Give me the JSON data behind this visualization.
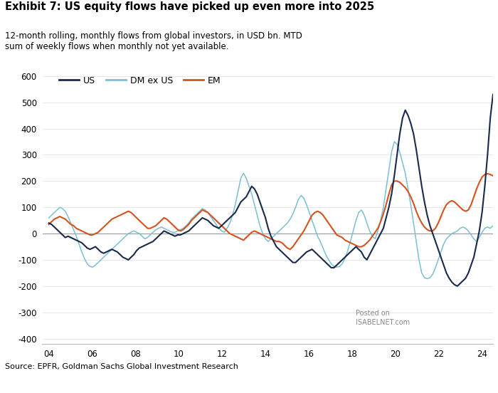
{
  "title": "Exhibit 7: US equity flows have picked up even more into 2025",
  "subtitle": "12-month rolling, monthly flows from global investors, in USD bn. MTD\nsum of weekly flows when monthly not yet available.",
  "source": "Source: EPFR, Goldman Sachs Global Investment Research",
  "xlim": [
    3.7,
    24.5
  ],
  "ylim": [
    -420,
    620
  ],
  "yticks": [
    -400,
    -300,
    -200,
    -100,
    0,
    100,
    200,
    300,
    400,
    500,
    600
  ],
  "xticks": [
    4,
    6,
    8,
    10,
    12,
    14,
    16,
    18,
    20,
    22,
    24
  ],
  "colors": {
    "US": "#1a2a4a",
    "DM_ex_US": "#7bbfd4",
    "EM": "#d4531e"
  },
  "US": [
    40,
    35,
    25,
    15,
    5,
    -5,
    -15,
    -10,
    -15,
    -20,
    -25,
    -30,
    -35,
    -45,
    -55,
    -60,
    -55,
    -50,
    -60,
    -70,
    -75,
    -70,
    -65,
    -60,
    -65,
    -70,
    -80,
    -90,
    -95,
    -100,
    -90,
    -80,
    -65,
    -55,
    -50,
    -45,
    -40,
    -35,
    -30,
    -20,
    -10,
    0,
    10,
    5,
    0,
    -5,
    -10,
    -5,
    -5,
    0,
    5,
    10,
    20,
    30,
    40,
    50,
    60,
    55,
    50,
    40,
    30,
    25,
    20,
    30,
    40,
    50,
    60,
    70,
    80,
    100,
    120,
    130,
    140,
    160,
    180,
    170,
    150,
    120,
    90,
    60,
    20,
    -10,
    -30,
    -50,
    -60,
    -70,
    -80,
    -90,
    -100,
    -110,
    -110,
    -100,
    -90,
    -80,
    -70,
    -65,
    -60,
    -70,
    -80,
    -90,
    -100,
    -110,
    -120,
    -130,
    -130,
    -120,
    -110,
    -100,
    -90,
    -80,
    -70,
    -60,
    -50,
    -60,
    -70,
    -90,
    -100,
    -80,
    -60,
    -40,
    -20,
    0,
    20,
    60,
    100,
    150,
    220,
    300,
    380,
    440,
    470,
    450,
    420,
    380,
    320,
    250,
    180,
    120,
    70,
    30,
    0,
    -30,
    -60,
    -90,
    -120,
    -150,
    -170,
    -185,
    -195,
    -200,
    -190,
    -180,
    -170,
    -150,
    -120,
    -90,
    -40,
    10,
    80,
    180,
    300,
    440,
    530
  ],
  "DM_ex_US": [
    60,
    70,
    80,
    90,
    100,
    95,
    85,
    65,
    40,
    15,
    -10,
    -40,
    -70,
    -95,
    -115,
    -125,
    -128,
    -120,
    -110,
    -100,
    -90,
    -80,
    -70,
    -60,
    -50,
    -40,
    -30,
    -20,
    -10,
    0,
    5,
    10,
    5,
    0,
    -10,
    -20,
    -15,
    -5,
    5,
    15,
    20,
    25,
    20,
    15,
    10,
    5,
    5,
    10,
    15,
    20,
    30,
    40,
    55,
    65,
    75,
    85,
    95,
    90,
    80,
    65,
    50,
    35,
    20,
    10,
    5,
    20,
    40,
    70,
    110,
    160,
    210,
    230,
    210,
    180,
    150,
    110,
    70,
    30,
    0,
    -20,
    -30,
    -20,
    -10,
    0,
    10,
    20,
    30,
    40,
    55,
    75,
    100,
    130,
    145,
    135,
    110,
    80,
    50,
    20,
    -10,
    -30,
    -55,
    -80,
    -100,
    -115,
    -125,
    -128,
    -125,
    -115,
    -95,
    -65,
    -30,
    10,
    50,
    80,
    90,
    70,
    40,
    10,
    -10,
    -20,
    10,
    50,
    100,
    170,
    240,
    310,
    350,
    340,
    310,
    270,
    230,
    170,
    110,
    40,
    -30,
    -100,
    -150,
    -168,
    -172,
    -168,
    -155,
    -130,
    -100,
    -70,
    -40,
    -20,
    -10,
    0,
    5,
    10,
    20,
    25,
    20,
    10,
    -5,
    -20,
    -30,
    -15,
    5,
    20,
    25,
    20,
    30
  ],
  "EM": [
    35,
    45,
    55,
    60,
    65,
    60,
    55,
    45,
    35,
    30,
    20,
    15,
    10,
    5,
    0,
    -5,
    -5,
    0,
    5,
    15,
    25,
    35,
    45,
    55,
    60,
    65,
    70,
    75,
    80,
    85,
    80,
    70,
    60,
    50,
    40,
    30,
    20,
    20,
    25,
    30,
    40,
    50,
    60,
    55,
    45,
    35,
    25,
    15,
    10,
    15,
    25,
    35,
    50,
    60,
    70,
    80,
    90,
    85,
    80,
    70,
    60,
    50,
    40,
    30,
    20,
    10,
    0,
    -5,
    -10,
    -15,
    -20,
    -25,
    -15,
    -5,
    5,
    10,
    5,
    0,
    -5,
    -10,
    -15,
    -20,
    -25,
    -30,
    -30,
    -35,
    -45,
    -55,
    -60,
    -50,
    -35,
    -20,
    -5,
    10,
    30,
    50,
    70,
    80,
    85,
    80,
    70,
    55,
    40,
    25,
    10,
    -5,
    -10,
    -15,
    -25,
    -30,
    -35,
    -40,
    -45,
    -50,
    -50,
    -45,
    -35,
    -25,
    -10,
    5,
    20,
    45,
    75,
    110,
    150,
    185,
    200,
    200,
    195,
    185,
    175,
    160,
    140,
    115,
    85,
    60,
    40,
    25,
    15,
    10,
    10,
    20,
    40,
    65,
    90,
    110,
    120,
    125,
    120,
    110,
    100,
    90,
    85,
    90,
    110,
    140,
    170,
    195,
    215,
    225,
    228,
    225,
    220
  ]
}
